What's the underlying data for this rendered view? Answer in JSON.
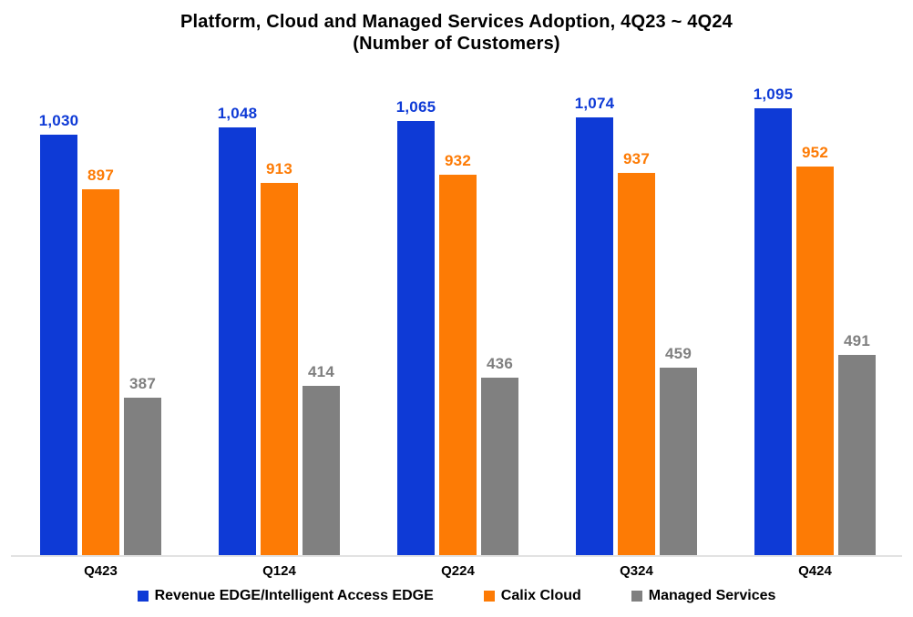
{
  "chart_data": {
    "type": "bar",
    "title_line1": "Platform, Cloud and Managed Services Adoption, 4Q23 ~ 4Q24",
    "title_line2": "(Number of Customers)",
    "categories": [
      "Q423",
      "Q124",
      "Q224",
      "Q324",
      "Q424"
    ],
    "series": [
      {
        "name": "Revenue EDGE/Intelligent Access EDGE",
        "color": "#0e3ad6",
        "label_color": "#0e3ad6",
        "values": [
          1030,
          1048,
          1065,
          1074,
          1095
        ],
        "labels": [
          "1,030",
          "1,048",
          "1,065",
          "1,074",
          "1,095"
        ]
      },
      {
        "name": "Calix Cloud",
        "color": "#fd7b05",
        "label_color": "#fd7b05",
        "values": [
          897,
          913,
          932,
          937,
          952
        ],
        "labels": [
          "897",
          "913",
          "932",
          "937",
          "952"
        ]
      },
      {
        "name": "Managed Services",
        "color": "#808080",
        "label_color": "#7f7f7f",
        "values": [
          387,
          414,
          436,
          459,
          491
        ],
        "labels": [
          "387",
          "414",
          "436",
          "459",
          "491"
        ]
      }
    ],
    "ylim": [
      0,
      1160
    ],
    "grid": false,
    "legend_position": "bottom",
    "axis_line_color": "#e2e2e2"
  }
}
